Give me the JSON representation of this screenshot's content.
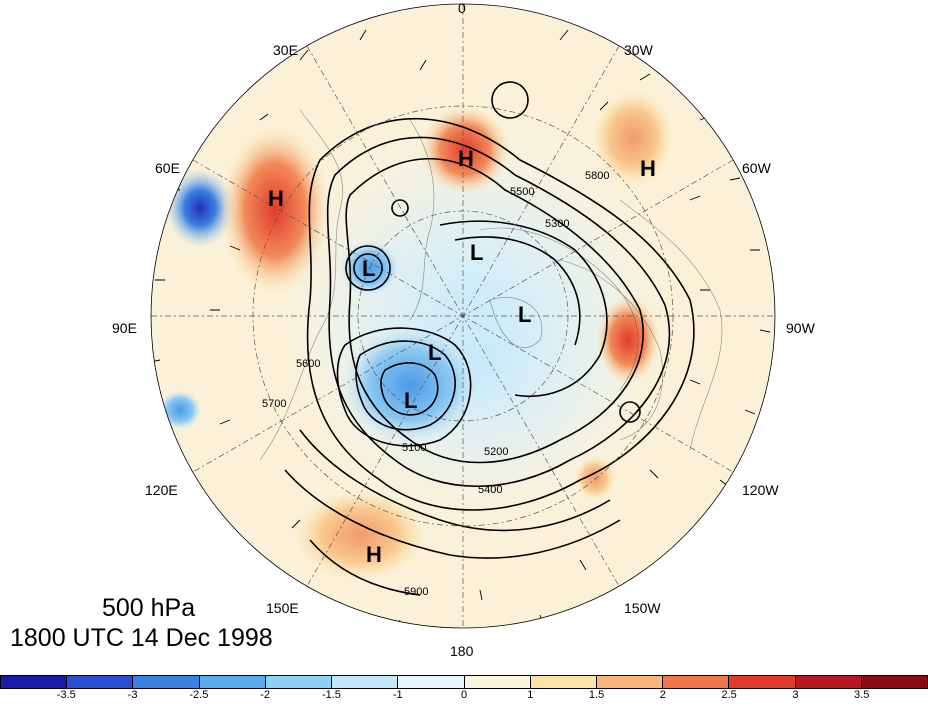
{
  "map": {
    "level": "500 hPa",
    "valid_time": "1800 UTC 14 Dec 1998",
    "longitude_labels": [
      "0",
      "30W",
      "60W",
      "90W",
      "120W",
      "150W",
      "180",
      "150E",
      "120E",
      "90E",
      "60E",
      "30E"
    ],
    "contour_labels": [
      "5100",
      "5200",
      "5300",
      "5400",
      "5500",
      "5600",
      "5700",
      "5800",
      "5900"
    ],
    "pressure_centers": [
      {
        "label": "H",
        "near": "30E-60E, midlatitude"
      },
      {
        "label": "H",
        "near": "0-30W"
      },
      {
        "label": "H",
        "near": "30W-60W"
      },
      {
        "label": "H",
        "near": "150E-180"
      },
      {
        "label": "L",
        "near": "60E-90E"
      },
      {
        "label": "L",
        "near": "0-90W, polar"
      },
      {
        "label": "L",
        "near": "90W, polar"
      },
      {
        "label": "L",
        "near": "150E, polar"
      },
      {
        "label": "L",
        "near": "120E-150E, polar"
      }
    ],
    "colors": {
      "warm": "#e8452b",
      "cool": "#3a8fdc",
      "background": "#ffffff"
    }
  },
  "colorbar": {
    "ticks": [
      "-3.5",
      "-3",
      "-2.5",
      "-2",
      "-1.5",
      "-1",
      "0",
      "1",
      "1.5",
      "2",
      "2.5",
      "3",
      "3.5"
    ],
    "colors": [
      "#1a1aa8",
      "#2a4fd2",
      "#3a82e2",
      "#5aaaf0",
      "#8ed0f6",
      "#c2e8fa",
      "#e6f6fb",
      "#fbf6e0",
      "#fbe4a8",
      "#f9b57a",
      "#f2764a",
      "#e23a2a",
      "#b81620",
      "#8c0a18"
    ]
  }
}
